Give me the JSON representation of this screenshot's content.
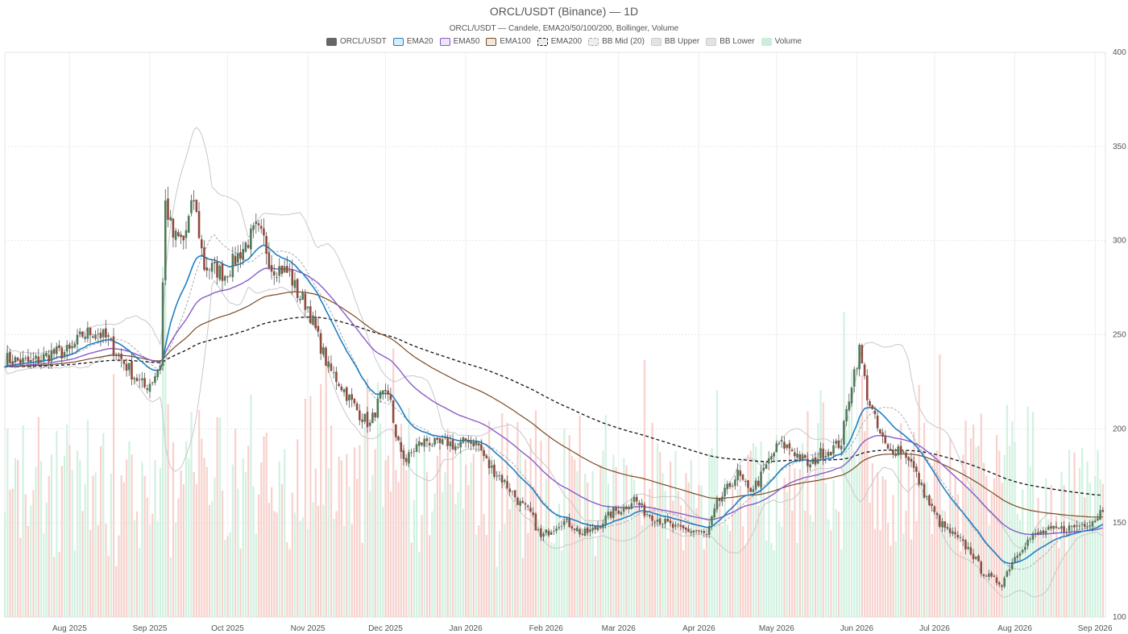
{
  "chart_data": {
    "type": "candlestick",
    "title": "ORCL/USDT (Binance) — 1D",
    "subtitle": "ORCL/USDT — Candele, EMA20/50/100/200, Bollinger, Volume",
    "legend": [
      {
        "name": "ORCL/USDT",
        "fill": "#666666",
        "stroke": "#666666",
        "dash": false
      },
      {
        "name": "EMA20",
        "fill": "#d6ecf8",
        "stroke": "#1f7fc4",
        "dash": false
      },
      {
        "name": "EMA50",
        "fill": "#ece4f7",
        "stroke": "#8a5cc8",
        "dash": false
      },
      {
        "name": "EMA100",
        "fill": "#f3e6da",
        "stroke": "#7a4a26",
        "dash": false
      },
      {
        "name": "EMA200",
        "fill": "#eeeeee",
        "stroke": "#111111",
        "dash": true
      },
      {
        "name": "BB Mid (20)",
        "fill": "#eeeeee",
        "stroke": "#aaaaaa",
        "dash": true
      },
      {
        "name": "BB Upper",
        "fill": "#e3e3e3",
        "stroke": "#cccccc",
        "dash": false
      },
      {
        "name": "BB Lower",
        "fill": "#e3e3e3",
        "stroke": "#cccccc",
        "dash": false
      },
      {
        "name": "Volume",
        "fill": "#c9eedb",
        "stroke": "#c9eedb",
        "dash": false
      }
    ],
    "x_ticks": [
      "Aug 2025",
      "Sep 2025",
      "Oct 2025",
      "Nov 2025",
      "Dec 2025",
      "Jan 2026",
      "Feb 2026",
      "Mar 2026",
      "Apr 2026",
      "May 2026",
      "Jun 2026",
      "Jul 2026",
      "Aug 2026",
      "Sep 2026"
    ],
    "y_ticks": [
      100,
      150,
      200,
      250,
      300,
      350,
      400
    ],
    "ylim": [
      100,
      400
    ],
    "xlim_days": [
      -25,
      400
    ],
    "tick_days": [
      0,
      31,
      61,
      92,
      122,
      153,
      184,
      212,
      243,
      273,
      304,
      334,
      365,
      396
    ],
    "anchors": [
      [
        -25,
        237
      ],
      [
        -15,
        235
      ],
      [
        -7,
        240
      ],
      [
        0,
        241
      ],
      [
        5,
        250
      ],
      [
        10,
        252
      ],
      [
        15,
        247
      ],
      [
        20,
        237
      ],
      [
        25,
        228
      ],
      [
        29,
        222
      ],
      [
        32,
        226
      ],
      [
        35,
        235
      ],
      [
        37,
        320
      ],
      [
        40,
        302
      ],
      [
        44,
        300
      ],
      [
        48,
        322
      ],
      [
        52,
        286
      ],
      [
        56,
        285
      ],
      [
        60,
        282
      ],
      [
        64,
        290
      ],
      [
        68,
        298
      ],
      [
        72,
        306
      ],
      [
        75,
        300
      ],
      [
        78,
        286
      ],
      [
        82,
        285
      ],
      [
        85,
        282
      ],
      [
        88,
        272
      ],
      [
        92,
        265
      ],
      [
        96,
        248
      ],
      [
        100,
        232
      ],
      [
        104,
        225
      ],
      [
        108,
        216
      ],
      [
        112,
        208
      ],
      [
        116,
        202
      ],
      [
        120,
        217
      ],
      [
        124,
        216
      ],
      [
        126,
        194
      ],
      [
        130,
        183
      ],
      [
        134,
        191
      ],
      [
        138,
        194
      ],
      [
        142,
        191
      ],
      [
        146,
        193
      ],
      [
        150,
        190
      ],
      [
        154,
        195
      ],
      [
        158,
        191
      ],
      [
        162,
        180
      ],
      [
        166,
        175
      ],
      [
        170,
        168
      ],
      [
        174,
        160
      ],
      [
        178,
        155
      ],
      [
        182,
        142
      ],
      [
        186,
        147
      ],
      [
        190,
        151
      ],
      [
        194,
        149
      ],
      [
        198,
        144
      ],
      [
        202,
        146
      ],
      [
        206,
        151
      ],
      [
        210,
        156
      ],
      [
        214,
        158
      ],
      [
        218,
        163
      ],
      [
        222,
        156
      ],
      [
        226,
        153
      ],
      [
        230,
        150
      ],
      [
        234,
        147
      ],
      [
        238,
        146
      ],
      [
        242,
        146
      ],
      [
        246,
        143
      ],
      [
        250,
        160
      ],
      [
        254,
        168
      ],
      [
        258,
        176
      ],
      [
        262,
        167
      ],
      [
        266,
        172
      ],
      [
        270,
        183
      ],
      [
        274,
        192
      ],
      [
        278,
        190
      ],
      [
        282,
        185
      ],
      [
        286,
        180
      ],
      [
        290,
        187
      ],
      [
        294,
        189
      ],
      [
        298,
        193
      ],
      [
        302,
        225
      ],
      [
        305,
        242
      ],
      [
        308,
        218
      ],
      [
        312,
        200
      ],
      [
        316,
        188
      ],
      [
        320,
        190
      ],
      [
        324,
        185
      ],
      [
        328,
        172
      ],
      [
        332,
        160
      ],
      [
        336,
        150
      ],
      [
        340,
        145
      ],
      [
        344,
        140
      ],
      [
        348,
        135
      ],
      [
        352,
        125
      ],
      [
        356,
        120
      ],
      [
        360,
        118
      ],
      [
        364,
        130
      ],
      [
        368,
        138
      ],
      [
        372,
        143
      ],
      [
        376,
        145
      ],
      [
        380,
        146
      ],
      [
        384,
        147
      ],
      [
        388,
        148
      ],
      [
        392,
        150
      ],
      [
        396,
        152
      ],
      [
        399,
        158
      ]
    ]
  }
}
